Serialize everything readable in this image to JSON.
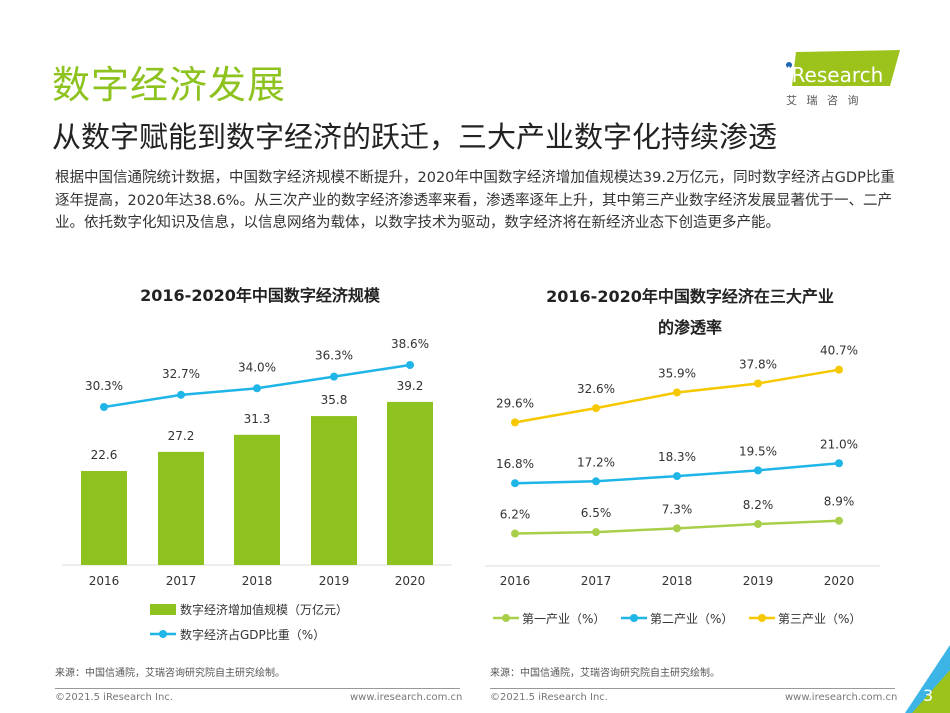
{
  "header": {
    "title": "数字经济发展",
    "subtitle": "从数字赋能到数字经济的跃迁，三大产业数字化持续渗透",
    "logo_text": "iResearch",
    "logo_sub": "艾 瑞 咨 询"
  },
  "body_text": "根据中国信通院统计数据，中国数字经济规模不断提升，2020年中国数字经济增加值规模达39.2万亿元，同时数字经济占GDP比重逐年提高，2020年达38.6%。从三次产业的数字经济渗透率来看，渗透率逐年上升，其中第三产业数字经济发展显著优于一、二产业。依托数字化知识及信息，以信息网络为载体，以数字技术为驱动，数字经济将在新经济业态下创造更多产能。",
  "chart_data": [
    {
      "type": "bar+line",
      "title": "2016-2020年中国数字经济规模",
      "categories": [
        "2016",
        "2017",
        "2018",
        "2019",
        "2020"
      ],
      "series": [
        {
          "name": "数字经济增加值规模（万亿元）",
          "type": "bar",
          "values": [
            22.6,
            27.2,
            31.3,
            35.8,
            39.2
          ],
          "labels": [
            "22.6",
            "27.2",
            "31.3",
            "35.8",
            "39.2"
          ],
          "color": "#8dc21f"
        },
        {
          "name": "数字经济占GDP比重（%）",
          "type": "line",
          "values": [
            30.3,
            32.7,
            34.0,
            36.3,
            38.6
          ],
          "labels": [
            "30.3%",
            "32.7%",
            "34.0%",
            "36.3%",
            "38.6%"
          ],
          "color": "#1fb5e6"
        }
      ],
      "legend": "bottom",
      "grid": false
    },
    {
      "type": "line",
      "title": "2016-2020年中国数字经济在三大产业的渗透率",
      "title_lines": [
        "2016-2020年中国数字经济在三大产业",
        "的渗透率"
      ],
      "categories": [
        "2016",
        "2017",
        "2018",
        "2019",
        "2020"
      ],
      "series": [
        {
          "name": "第一产业（%）",
          "values": [
            6.2,
            6.5,
            7.3,
            8.2,
            8.9
          ],
          "labels": [
            "6.2%",
            "6.5%",
            "7.3%",
            "8.2%",
            "8.9%"
          ],
          "color": "#a9cf4a"
        },
        {
          "name": "第二产业（%）",
          "values": [
            16.8,
            17.2,
            18.3,
            19.5,
            21.0
          ],
          "labels": [
            "16.8%",
            "17.2%",
            "18.3%",
            "19.5%",
            "21.0%"
          ],
          "color": "#1fb5e6"
        },
        {
          "name": "第三产业（%）",
          "values": [
            29.6,
            32.6,
            35.9,
            37.8,
            40.7
          ],
          "labels": [
            "29.6%",
            "32.6%",
            "35.9%",
            "37.8%",
            "40.7%"
          ],
          "color": "#f5c800"
        }
      ],
      "legend": "bottom",
      "grid": false
    }
  ],
  "footer": {
    "source_left": "来源：中国信通院，艾瑞咨询研究院自主研究绘制。",
    "source_right": "来源：中国信通院，艾瑞咨询研究院自主研究绘制。",
    "copyright": "©2021.5 iResearch Inc.",
    "url": "www.iresearch.com.cn",
    "page": "3"
  }
}
